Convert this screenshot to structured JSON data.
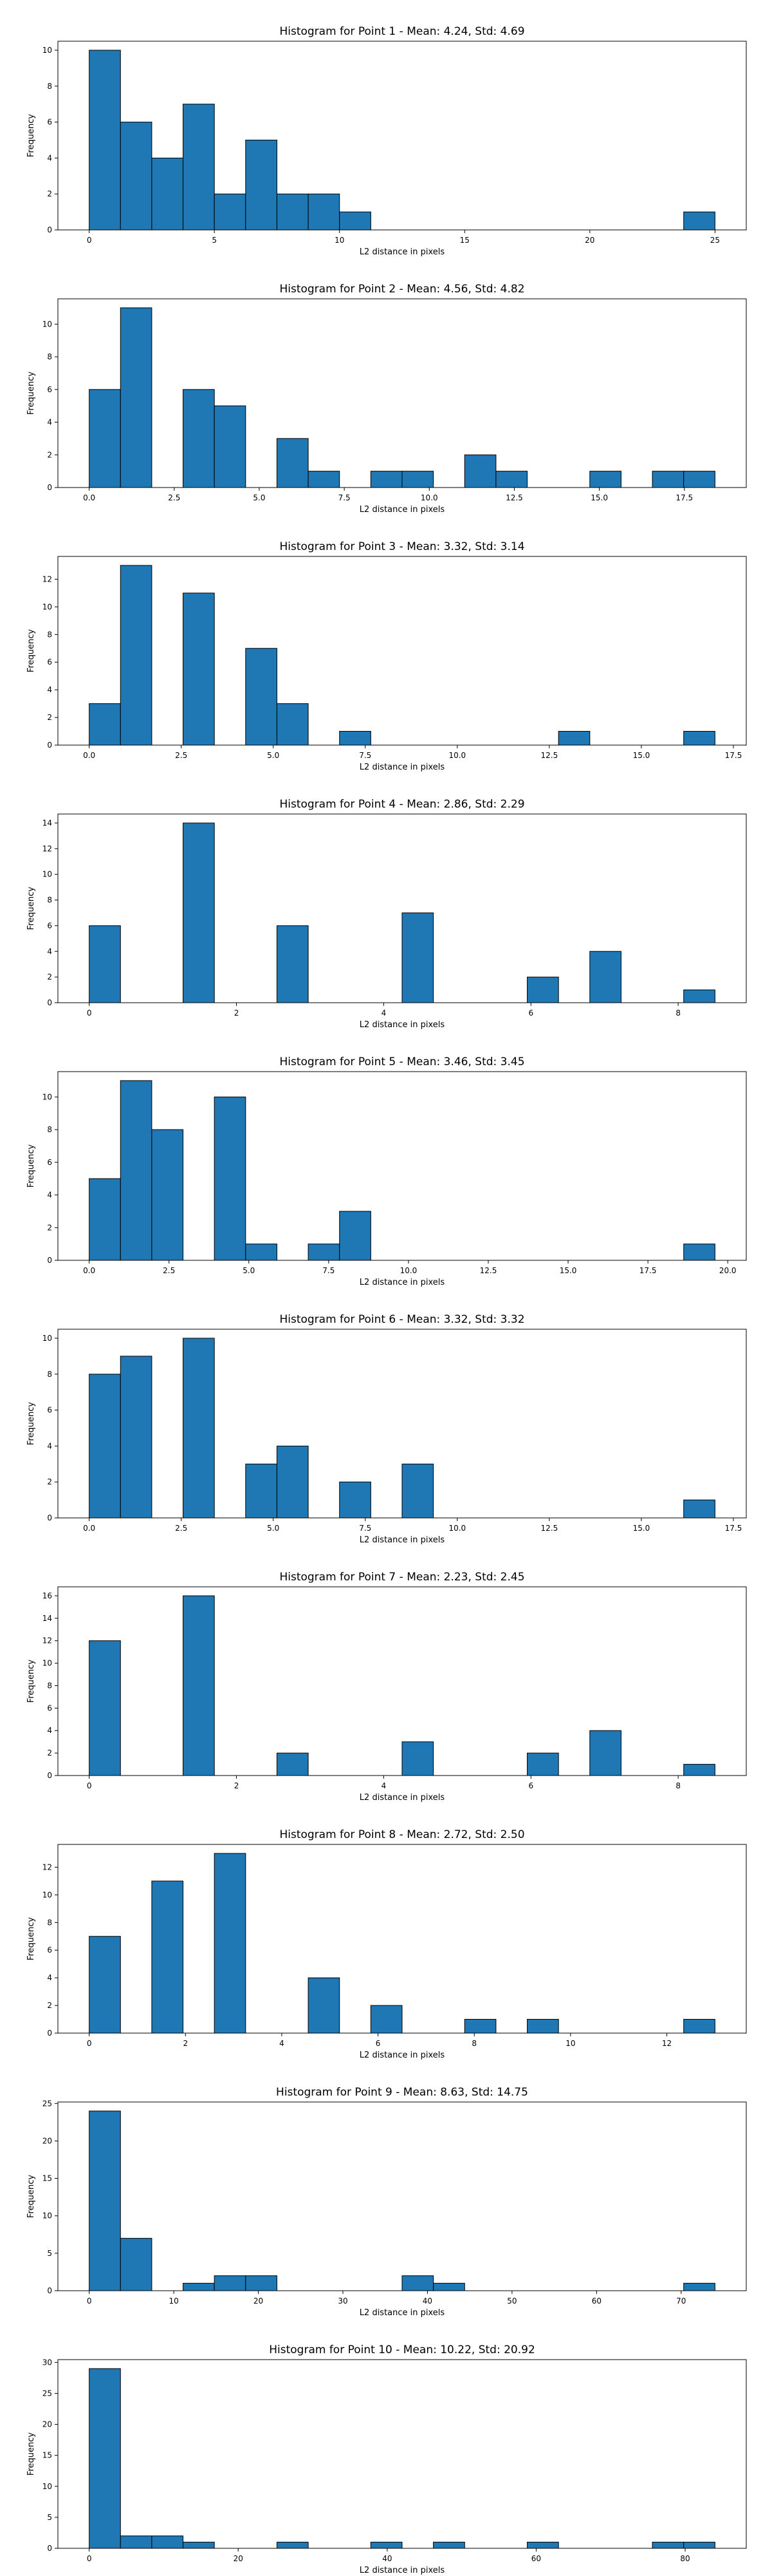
{
  "chart_data": [
    {
      "type": "bar",
      "title": "Histogram for Point 1 - Mean: 4.24, Std: 4.69",
      "xlabel": "L2 distance in pixels",
      "ylabel": "Frequency",
      "bin_edges": [
        0,
        1.25,
        2.5,
        3.75,
        5,
        6.25,
        7.5,
        8.75,
        10,
        11.25,
        12.5,
        13.75,
        15,
        16.25,
        17.5,
        18.75,
        20,
        21.25,
        22.5,
        23.75,
        25
      ],
      "values": [
        10,
        6,
        4,
        7,
        2,
        5,
        2,
        2,
        1,
        0,
        0,
        0,
        0,
        0,
        0,
        0,
        0,
        0,
        0,
        1
      ],
      "xlim": [
        -1.25,
        26.25
      ],
      "ylim": [
        0,
        10.5
      ],
      "xticks": [
        0,
        5,
        10,
        15,
        20,
        25
      ],
      "xtick_labels": [
        "0",
        "5",
        "10",
        "15",
        "20",
        "25"
      ],
      "yticks": [
        0,
        2,
        4,
        6,
        8,
        10
      ],
      "ytick_labels": [
        "0",
        "2",
        "4",
        "6",
        "8",
        "10"
      ],
      "color": "#1f77b4",
      "edge_color": "#000000",
      "grid": false
    },
    {
      "type": "bar",
      "title": "Histogram for Point 2 - Mean: 4.56, Std: 4.82",
      "xlabel": "L2 distance in pixels",
      "ylabel": "Frequency",
      "bin_edges": [
        0,
        0.92,
        1.84,
        2.76,
        3.68,
        4.6,
        5.52,
        6.44,
        7.36,
        8.28,
        9.2,
        10.12,
        11.04,
        11.96,
        12.88,
        13.8,
        14.72,
        15.64,
        16.56,
        17.48,
        18.4
      ],
      "values": [
        6,
        11,
        0,
        6,
        5,
        0,
        3,
        1,
        0,
        1,
        1,
        0,
        2,
        1,
        0,
        0,
        1,
        0,
        1,
        1
      ],
      "xlim": [
        -0.92,
        19.32
      ],
      "ylim": [
        0,
        11.55
      ],
      "xticks": [
        0,
        2.5,
        5,
        7.5,
        10,
        12.5,
        15,
        17.5
      ],
      "xtick_labels": [
        "0.0",
        "2.5",
        "5.0",
        "7.5",
        "10.0",
        "12.5",
        "15.0",
        "17.5"
      ],
      "yticks": [
        0,
        2,
        4,
        6,
        8,
        10
      ],
      "ytick_labels": [
        "0",
        "2",
        "4",
        "6",
        "8",
        "10"
      ],
      "color": "#1f77b4",
      "edge_color": "#000000",
      "grid": false
    },
    {
      "type": "bar",
      "title": "Histogram for Point 3 - Mean: 3.32, Std: 3.14",
      "xlabel": "L2 distance in pixels",
      "ylabel": "Frequency",
      "bin_edges": [
        0,
        0.85,
        1.7,
        2.55,
        3.4,
        4.25,
        5.1,
        5.95,
        6.8,
        7.65,
        8.5,
        9.35,
        10.2,
        11.05,
        11.9,
        12.75,
        13.6,
        14.45,
        15.3,
        16.15,
        17
      ],
      "values": [
        3,
        13,
        0,
        11,
        0,
        7,
        3,
        0,
        1,
        0,
        0,
        0,
        0,
        0,
        0,
        1,
        0,
        0,
        0,
        1
      ],
      "xlim": [
        -0.85,
        17.85
      ],
      "ylim": [
        0,
        13.65
      ],
      "xticks": [
        0,
        2.5,
        5,
        7.5,
        10,
        12.5,
        15,
        17.5
      ],
      "xtick_labels": [
        "0.0",
        "2.5",
        "5.0",
        "7.5",
        "10.0",
        "12.5",
        "15.0",
        "17.5"
      ],
      "yticks": [
        0,
        2,
        4,
        6,
        8,
        10,
        12
      ],
      "ytick_labels": [
        "0",
        "2",
        "4",
        "6",
        "8",
        "10",
        "12"
      ],
      "color": "#1f77b4",
      "edge_color": "#000000",
      "grid": false
    },
    {
      "type": "bar",
      "title": "Histogram for Point 4 - Mean: 2.86, Std: 2.29",
      "xlabel": "L2 distance in pixels",
      "ylabel": "Frequency",
      "bin_edges": [
        0,
        0.425,
        0.85,
        1.275,
        1.7,
        2.125,
        2.55,
        2.975,
        3.4,
        3.825,
        4.25,
        4.675,
        5.1,
        5.525,
        5.95,
        6.375,
        6.8,
        7.225,
        7.65,
        8.075,
        8.5
      ],
      "values": [
        6,
        0,
        0,
        14,
        0,
        0,
        6,
        0,
        0,
        0,
        7,
        0,
        0,
        0,
        2,
        0,
        4,
        0,
        0,
        1
      ],
      "xlim": [
        -0.425,
        8.925
      ],
      "ylim": [
        0,
        14.7
      ],
      "xticks": [
        0,
        2,
        4,
        6,
        8
      ],
      "xtick_labels": [
        "0",
        "2",
        "4",
        "6",
        "8"
      ],
      "yticks": [
        0,
        2,
        4,
        6,
        8,
        10,
        12,
        14
      ],
      "ytick_labels": [
        "0",
        "2",
        "4",
        "6",
        "8",
        "10",
        "12",
        "14"
      ],
      "color": "#1f77b4",
      "edge_color": "#000000",
      "grid": false
    },
    {
      "type": "bar",
      "title": "Histogram for Point 5 - Mean: 3.46, Std: 3.45",
      "xlabel": "L2 distance in pixels",
      "ylabel": "Frequency",
      "bin_edges": [
        0,
        0.98,
        1.96,
        2.94,
        3.92,
        4.9,
        5.88,
        6.86,
        7.84,
        8.82,
        9.8,
        10.78,
        11.76,
        12.74,
        13.72,
        14.7,
        15.68,
        16.66,
        17.64,
        18.62,
        19.6
      ],
      "values": [
        5,
        11,
        8,
        0,
        10,
        1,
        0,
        1,
        3,
        0,
        0,
        0,
        0,
        0,
        0,
        0,
        0,
        0,
        0,
        1
      ],
      "xlim": [
        -0.98,
        20.58
      ],
      "ylim": [
        0,
        11.55
      ],
      "xticks": [
        0,
        2.5,
        5,
        7.5,
        10,
        12.5,
        15,
        17.5,
        20
      ],
      "xtick_labels": [
        "0.0",
        "2.5",
        "5.0",
        "7.5",
        "10.0",
        "12.5",
        "15.0",
        "17.5",
        "20.0"
      ],
      "yticks": [
        0,
        2,
        4,
        6,
        8,
        10
      ],
      "ytick_labels": [
        "0",
        "2",
        "4",
        "6",
        "8",
        "10"
      ],
      "color": "#1f77b4",
      "edge_color": "#000000",
      "grid": false
    },
    {
      "type": "bar",
      "title": "Histogram for Point 6 - Mean: 3.32, Std: 3.32",
      "xlabel": "L2 distance in pixels",
      "ylabel": "Frequency",
      "bin_edges": [
        0,
        0.85,
        1.7,
        2.55,
        3.4,
        4.25,
        5.1,
        5.95,
        6.8,
        7.65,
        8.5,
        9.35,
        10.2,
        11.05,
        11.9,
        12.75,
        13.6,
        14.45,
        15.3,
        16.15,
        17
      ],
      "values": [
        8,
        9,
        0,
        10,
        0,
        3,
        4,
        0,
        2,
        0,
        3,
        0,
        0,
        0,
        0,
        0,
        0,
        0,
        0,
        1
      ],
      "xlim": [
        -0.85,
        17.85
      ],
      "ylim": [
        0,
        10.5
      ],
      "xticks": [
        0,
        2.5,
        5,
        7.5,
        10,
        12.5,
        15,
        17.5
      ],
      "xtick_labels": [
        "0.0",
        "2.5",
        "5.0",
        "7.5",
        "10.0",
        "12.5",
        "15.0",
        "17.5"
      ],
      "yticks": [
        0,
        2,
        4,
        6,
        8,
        10
      ],
      "ytick_labels": [
        "0",
        "2",
        "4",
        "6",
        "8",
        "10"
      ],
      "color": "#1f77b4",
      "edge_color": "#000000",
      "grid": false
    },
    {
      "type": "bar",
      "title": "Histogram for Point 7 - Mean: 2.23, Std: 2.45",
      "xlabel": "L2 distance in pixels",
      "ylabel": "Frequency",
      "bin_edges": [
        0,
        0.425,
        0.85,
        1.275,
        1.7,
        2.125,
        2.55,
        2.975,
        3.4,
        3.825,
        4.25,
        4.675,
        5.1,
        5.525,
        5.95,
        6.375,
        6.8,
        7.225,
        7.65,
        8.075,
        8.5
      ],
      "values": [
        12,
        0,
        0,
        16,
        0,
        0,
        2,
        0,
        0,
        0,
        3,
        0,
        0,
        0,
        2,
        0,
        4,
        0,
        0,
        1
      ],
      "xlim": [
        -0.425,
        8.925
      ],
      "ylim": [
        0,
        16.8
      ],
      "xticks": [
        0,
        2,
        4,
        6,
        8
      ],
      "xtick_labels": [
        "0",
        "2",
        "4",
        "6",
        "8"
      ],
      "yticks": [
        0,
        2,
        4,
        6,
        8,
        10,
        12,
        14,
        16
      ],
      "ytick_labels": [
        "0",
        "2",
        "4",
        "6",
        "8",
        "10",
        "12",
        "14",
        "16"
      ],
      "color": "#1f77b4",
      "edge_color": "#000000",
      "grid": false
    },
    {
      "type": "bar",
      "title": "Histogram for Point 8 - Mean: 2.72, Std: 2.50",
      "xlabel": "L2 distance in pixels",
      "ylabel": "Frequency",
      "bin_edges": [
        0,
        0.65,
        1.3,
        1.95,
        2.6,
        3.25,
        3.9,
        4.55,
        5.2,
        5.85,
        6.5,
        7.15,
        7.8,
        8.45,
        9.1,
        9.75,
        10.4,
        11.05,
        11.7,
        12.35,
        13
      ],
      "values": [
        7,
        0,
        11,
        0,
        13,
        0,
        0,
        4,
        0,
        2,
        0,
        0,
        1,
        0,
        1,
        0,
        0,
        0,
        0,
        1
      ],
      "xlim": [
        -0.65,
        13.65
      ],
      "ylim": [
        0,
        13.65
      ],
      "xticks": [
        0,
        2,
        4,
        6,
        8,
        10,
        12
      ],
      "xtick_labels": [
        "0",
        "2",
        "4",
        "6",
        "8",
        "10",
        "12"
      ],
      "yticks": [
        0,
        2,
        4,
        6,
        8,
        10,
        12
      ],
      "ytick_labels": [
        "0",
        "2",
        "4",
        "6",
        "8",
        "10",
        "12"
      ],
      "color": "#1f77b4",
      "edge_color": "#000000",
      "grid": false
    },
    {
      "type": "bar",
      "title": "Histogram for Point 9 - Mean: 8.63, Std: 14.75",
      "xlabel": "L2 distance in pixels",
      "ylabel": "Frequency",
      "bin_edges": [
        0,
        3.7,
        7.4,
        11.1,
        14.8,
        18.5,
        22.2,
        25.9,
        29.6,
        33.3,
        37,
        40.7,
        44.4,
        48.1,
        51.8,
        55.5,
        59.2,
        62.9,
        66.6,
        70.3,
        74
      ],
      "values": [
        24,
        7,
        0,
        1,
        2,
        2,
        0,
        0,
        0,
        0,
        2,
        1,
        0,
        0,
        0,
        0,
        0,
        0,
        0,
        1
      ],
      "xlim": [
        -3.7,
        77.7
      ],
      "ylim": [
        0,
        25.2
      ],
      "xticks": [
        0,
        10,
        20,
        30,
        40,
        50,
        60,
        70
      ],
      "xtick_labels": [
        "0",
        "10",
        "20",
        "30",
        "40",
        "50",
        "60",
        "70"
      ],
      "yticks": [
        0,
        5,
        10,
        15,
        20,
        25
      ],
      "ytick_labels": [
        "0",
        "5",
        "10",
        "15",
        "20",
        "25"
      ],
      "color": "#1f77b4",
      "edge_color": "#000000",
      "grid": false
    },
    {
      "type": "bar",
      "title": "Histogram for Point 10 - Mean: 10.22, Std: 20.92",
      "xlabel": "L2 distance in pixels",
      "ylabel": "Frequency",
      "bin_edges": [
        0,
        4.2,
        8.4,
        12.6,
        16.8,
        21,
        25.2,
        29.4,
        33.6,
        37.8,
        42,
        46.2,
        50.4,
        54.6,
        58.8,
        63,
        67.2,
        71.4,
        75.6,
        79.8,
        84
      ],
      "values": [
        29,
        2,
        2,
        1,
        0,
        0,
        1,
        0,
        0,
        1,
        0,
        1,
        0,
        0,
        1,
        0,
        0,
        0,
        1,
        1
      ],
      "xlim": [
        -4.2,
        88.2
      ],
      "ylim": [
        0,
        30.45
      ],
      "xticks": [
        0,
        20,
        40,
        60,
        80
      ],
      "xtick_labels": [
        "0",
        "20",
        "40",
        "60",
        "80"
      ],
      "yticks": [
        0,
        5,
        10,
        15,
        20,
        25,
        30
      ],
      "ytick_labels": [
        "0",
        "5",
        "10",
        "15",
        "20",
        "25",
        "30"
      ],
      "color": "#1f77b4",
      "edge_color": "#000000",
      "grid": false
    }
  ]
}
